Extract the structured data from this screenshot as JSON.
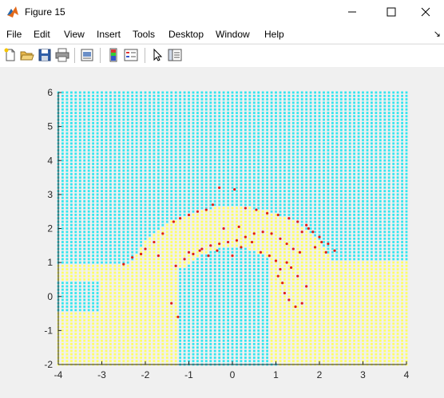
{
  "window": {
    "title": "Figure 15",
    "app_icon": "matlab-icon"
  },
  "menu": [
    "File",
    "Edit",
    "View",
    "Insert",
    "Tools",
    "Desktop",
    "Window",
    "Help"
  ],
  "toolbar_icons": [
    "new-figure-icon",
    "open-file-icon",
    "save-icon",
    "print-icon",
    "print-preview-icon",
    "colorbar-icon",
    "legend-icon",
    "pointer-icon",
    "property-editor-icon"
  ],
  "colors": {
    "region_a": "#33e6ef",
    "region_b": "#ffff66",
    "sample_points": "#e0201a",
    "axis": "#262626"
  },
  "chart_data": {
    "type": "scatter",
    "title": "",
    "xlabel": "",
    "ylabel": "",
    "xlim": [
      -4,
      4
    ],
    "ylim": [
      -2,
      6
    ],
    "xticks": [
      "-4",
      "-3",
      "-2",
      "-1",
      "0",
      "1",
      "2",
      "3",
      "4"
    ],
    "yticks": [
      "-2",
      "-1",
      "0",
      "1",
      "2",
      "3",
      "4",
      "5",
      "6"
    ],
    "grid": false,
    "legend": "none",
    "background_grid_step": 0.1,
    "sample_points": [
      [
        -2.5,
        0.95
      ],
      [
        -2.3,
        1.15
      ],
      [
        -2.1,
        1.25
      ],
      [
        -1.8,
        1.6
      ],
      [
        -1.6,
        1.85
      ],
      [
        -1.35,
        2.2
      ],
      [
        -1.2,
        2.3
      ],
      [
        -1.0,
        2.4
      ],
      [
        -0.8,
        2.5
      ],
      [
        -0.6,
        2.55
      ],
      [
        -0.45,
        2.7
      ],
      [
        -0.3,
        3.2
      ],
      [
        0.05,
        3.15
      ],
      [
        0.3,
        2.6
      ],
      [
        0.55,
        2.55
      ],
      [
        0.8,
        2.45
      ],
      [
        1.05,
        2.4
      ],
      [
        1.3,
        2.3
      ],
      [
        1.5,
        2.2
      ],
      [
        1.7,
        2.1
      ],
      [
        1.85,
        1.9
      ],
      [
        2.0,
        1.75
      ],
      [
        2.2,
        1.55
      ],
      [
        2.35,
        1.35
      ],
      [
        -1.3,
        0.9
      ],
      [
        -1.1,
        1.1
      ],
      [
        -0.9,
        1.25
      ],
      [
        -0.7,
        1.4
      ],
      [
        -0.5,
        1.5
      ],
      [
        -0.3,
        1.55
      ],
      [
        -0.1,
        1.6
      ],
      [
        0.1,
        1.65
      ],
      [
        0.3,
        1.75
      ],
      [
        0.5,
        1.85
      ],
      [
        0.7,
        1.9
      ],
      [
        0.9,
        1.85
      ],
      [
        1.1,
        1.7
      ],
      [
        1.25,
        1.55
      ],
      [
        1.4,
        1.4
      ],
      [
        1.55,
        1.3
      ],
      [
        1.0,
        1.05
      ],
      [
        1.05,
        0.6
      ],
      [
        1.1,
        0.8
      ],
      [
        1.15,
        0.4
      ],
      [
        1.2,
        0.1
      ],
      [
        1.3,
        -0.1
      ],
      [
        1.45,
        -0.3
      ],
      [
        1.6,
        -0.2
      ],
      [
        1.7,
        0.3
      ],
      [
        1.5,
        0.6
      ],
      [
        1.35,
        0.85
      ],
      [
        1.25,
        1.0
      ],
      [
        -1.4,
        -0.2
      ],
      [
        -1.25,
        -0.6
      ],
      [
        -1.0,
        1.3
      ],
      [
        -0.75,
        1.35
      ],
      [
        -0.55,
        1.2
      ],
      [
        -0.35,
        1.35
      ],
      [
        0.0,
        1.2
      ],
      [
        0.2,
        1.45
      ],
      [
        0.45,
        1.6
      ],
      [
        0.65,
        1.3
      ],
      [
        0.85,
        1.2
      ],
      [
        1.9,
        1.45
      ],
      [
        2.05,
        1.6
      ],
      [
        2.15,
        1.3
      ],
      [
        1.75,
        2.0
      ],
      [
        1.6,
        1.9
      ],
      [
        -0.2,
        2.0
      ],
      [
        0.15,
        2.05
      ],
      [
        -1.7,
        1.2
      ],
      [
        -2.0,
        1.4
      ]
    ]
  }
}
